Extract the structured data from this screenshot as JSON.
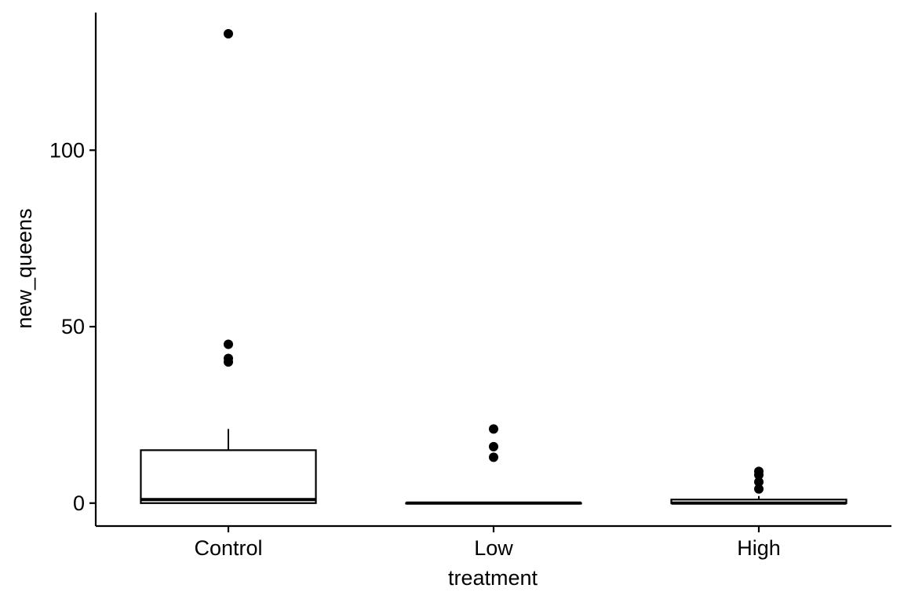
{
  "chart_data": {
    "type": "boxplot",
    "xlabel": "treatment",
    "ylabel": "new_queens",
    "categories": [
      "Control",
      "Low",
      "High"
    ],
    "ylim": [
      -6.5,
      139
    ],
    "yticks": [
      0,
      50,
      100
    ],
    "grid": false,
    "legend": "none",
    "boxes": [
      {
        "category": "Control",
        "whisker_low": 0,
        "q1": 0,
        "median": 1,
        "q3": 15,
        "whisker_high": 21,
        "outliers": [
          133,
          45,
          41,
          40
        ]
      },
      {
        "category": "Low",
        "whisker_low": 0,
        "q1": 0,
        "median": 0,
        "q3": 0,
        "whisker_high": 0,
        "outliers": [
          21,
          16,
          13
        ]
      },
      {
        "category": "High",
        "whisker_low": 0,
        "q1": 0,
        "median": 0,
        "q3": 1,
        "whisker_high": 2,
        "outliers": [
          9,
          8,
          6,
          4
        ]
      }
    ],
    "colors": {
      "box_fill": "#ffffff",
      "stroke": "#000000",
      "outlier": "#000000"
    }
  }
}
